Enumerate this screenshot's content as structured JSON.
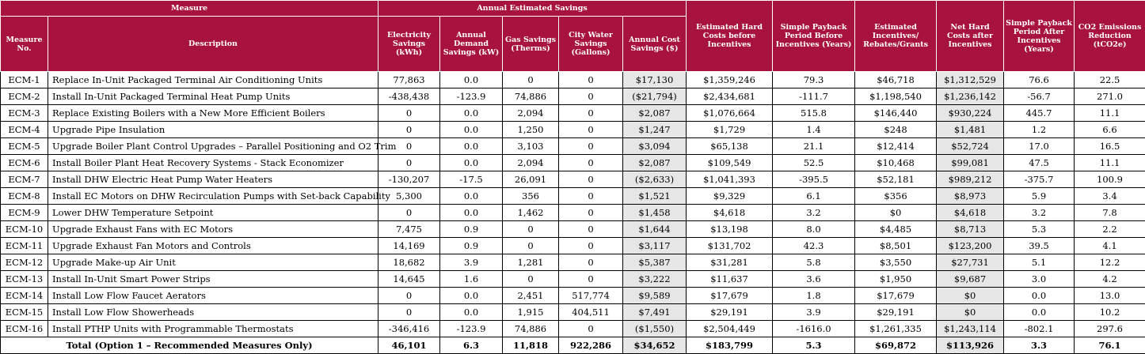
{
  "headers": {
    "measure": "Measure",
    "annual_savings": "Annual Estimated Savings",
    "no": "Measure No.",
    "description": "Description",
    "electricity": "Electricity Savings (kWh)",
    "demand": "Annual Demand Savings (kW)",
    "gas": "Gas Savings (Therms)",
    "water": "City Water Savings (Gallons)",
    "cost": "Annual Cost Savings ($)",
    "hard_costs": "Estimated Hard Costs before Incentives",
    "payback_before": "Simple Payback Period Before Incentives (Years)",
    "incentives": "Estimated Incentives/ Rebates/Grants",
    "net_costs": "Net Hard Costs after Incentives",
    "payback_after": "Simple Payback Period After Incentives (Years)",
    "co2": "CO2 Emissions Reduction (tCO2e)"
  },
  "rows": [
    {
      "no": "ECM-1",
      "desc": "Replace In-Unit Packaged Terminal Air Conditioning Units",
      "kwh": "77,863",
      "kw": "0.0",
      "therms": "0",
      "gallons": "0",
      "cost": "$17,130",
      "hard": "$1,359,246",
      "pb1": "79.3",
      "inc": "$46,718",
      "net": "$1,312,529",
      "pb2": "76.6",
      "co2": "22.5"
    },
    {
      "no": "ECM-2",
      "desc": "Install In-Unit Packaged Terminal Heat Pump Units",
      "kwh": "-438,438",
      "kw": "-123.9",
      "therms": "74,886",
      "gallons": "0",
      "cost": "($21,794)",
      "hard": "$2,434,681",
      "pb1": "-111.7",
      "inc": "$1,198,540",
      "net": "$1,236,142",
      "pb2": "-56.7",
      "co2": "271.0"
    },
    {
      "no": "ECM-3",
      "desc": "Replace Existing Boilers with a New More Efficient Boilers",
      "kwh": "0",
      "kw": "0.0",
      "therms": "2,094",
      "gallons": "0",
      "cost": "$2,087",
      "hard": "$1,076,664",
      "pb1": "515.8",
      "inc": "$146,440",
      "net": "$930,224",
      "pb2": "445.7",
      "co2": "11.1"
    },
    {
      "no": "ECM-4",
      "desc": "Upgrade Pipe Insulation",
      "kwh": "0",
      "kw": "0.0",
      "therms": "1,250",
      "gallons": "0",
      "cost": "$1,247",
      "hard": "$1,729",
      "pb1": "1.4",
      "inc": "$248",
      "net": "$1,481",
      "pb2": "1.2",
      "co2": "6.6"
    },
    {
      "no": "ECM-5",
      "desc": "Upgrade Boiler Plant Control Upgrades – Parallel Positioning and O2 Trim",
      "kwh": "0",
      "kw": "0.0",
      "therms": "3,103",
      "gallons": "0",
      "cost": "$3,094",
      "hard": "$65,138",
      "pb1": "21.1",
      "inc": "$12,414",
      "net": "$52,724",
      "pb2": "17.0",
      "co2": "16.5"
    },
    {
      "no": "ECM-6",
      "desc": "Install Boiler Plant Heat Recovery Systems - Stack Economizer",
      "kwh": "0",
      "kw": "0.0",
      "therms": "2,094",
      "gallons": "0",
      "cost": "$2,087",
      "hard": "$109,549",
      "pb1": "52.5",
      "inc": "$10,468",
      "net": "$99,081",
      "pb2": "47.5",
      "co2": "11.1"
    },
    {
      "no": "ECM-7",
      "desc": "Install DHW Electric Heat Pump Water Heaters",
      "kwh": "-130,207",
      "kw": "-17.5",
      "therms": "26,091",
      "gallons": "0",
      "cost": "($2,633)",
      "hard": "$1,041,393",
      "pb1": "-395.5",
      "inc": "$52,181",
      "net": "$989,212",
      "pb2": "-375.7",
      "co2": "100.9"
    },
    {
      "no": "ECM-8",
      "desc": "Install EC Motors on DHW Recirculation Pumps with Set-back Capability",
      "kwh": "5,300",
      "kw": "0.0",
      "therms": "356",
      "gallons": "0",
      "cost": "$1,521",
      "hard": "$9,329",
      "pb1": "6.1",
      "inc": "$356",
      "net": "$8,973",
      "pb2": "5.9",
      "co2": "3.4"
    },
    {
      "no": "ECM-9",
      "desc": "Lower DHW Temperature Setpoint",
      "kwh": "0",
      "kw": "0.0",
      "therms": "1,462",
      "gallons": "0",
      "cost": "$1,458",
      "hard": "$4,618",
      "pb1": "3.2",
      "inc": "$0",
      "net": "$4,618",
      "pb2": "3.2",
      "co2": "7.8"
    },
    {
      "no": "ECM-10",
      "desc": "Upgrade Exhaust Fans with EC Motors",
      "kwh": "7,475",
      "kw": "0.9",
      "therms": "0",
      "gallons": "0",
      "cost": "$1,644",
      "hard": "$13,198",
      "pb1": "8.0",
      "inc": "$4,485",
      "net": "$8,713",
      "pb2": "5.3",
      "co2": "2.2"
    },
    {
      "no": "ECM-11",
      "desc": "Upgrade Exhaust Fan Motors and Controls",
      "kwh": "14,169",
      "kw": "0.9",
      "therms": "0",
      "gallons": "0",
      "cost": "$3,117",
      "hard": "$131,702",
      "pb1": "42.3",
      "inc": "$8,501",
      "net": "$123,200",
      "pb2": "39.5",
      "co2": "4.1"
    },
    {
      "no": "ECM-12",
      "desc": "Upgrade Make-up Air Unit",
      "kwh": "18,682",
      "kw": "3.9",
      "therms": "1,281",
      "gallons": "0",
      "cost": "$5,387",
      "hard": "$31,281",
      "pb1": "5.8",
      "inc": "$3,550",
      "net": "$27,731",
      "pb2": "5.1",
      "co2": "12.2"
    },
    {
      "no": "ECM-13",
      "desc": "Install In-Unit Smart Power Strips",
      "kwh": "14,645",
      "kw": "1.6",
      "therms": "0",
      "gallons": "0",
      "cost": "$3,222",
      "hard": "$11,637",
      "pb1": "3.6",
      "inc": "$1,950",
      "net": "$9,687",
      "pb2": "3.0",
      "co2": "4.2"
    },
    {
      "no": "ECM-14",
      "desc": "Install Low Flow Faucet Aerators",
      "kwh": "0",
      "kw": "0.0",
      "therms": "2,451",
      "gallons": "517,774",
      "cost": "$9,589",
      "hard": "$17,679",
      "pb1": "1.8",
      "inc": "$17,679",
      "net": "$0",
      "pb2": "0.0",
      "co2": "13.0"
    },
    {
      "no": "ECM-15",
      "desc": "Install Low Flow Showerheads",
      "kwh": "0",
      "kw": "0.0",
      "therms": "1,915",
      "gallons": "404,511",
      "cost": "$7,491",
      "hard": "$29,191",
      "pb1": "3.9",
      "inc": "$29,191",
      "net": "$0",
      "pb2": "0.0",
      "co2": "10.2"
    },
    {
      "no": "ECM-16",
      "desc": "Install PTHP Units with Programmable Thermostats",
      "kwh": "-346,416",
      "kw": "-123.9",
      "therms": "74,886",
      "gallons": "0",
      "cost": "($1,550)",
      "hard": "$2,504,449",
      "pb1": "-1616.0",
      "inc": "$1,261,335",
      "net": "$1,243,114",
      "pb2": "-802.1",
      "co2": "297.6"
    }
  ],
  "total": {
    "label": "Total (Option 1 – Recommended Measures Only)",
    "kwh": "46,101",
    "kw": "6.3",
    "therms": "11,818",
    "gallons": "922,286",
    "cost": "$34,652",
    "hard": "$183,799",
    "pb1": "5.3",
    "inc": "$69,872",
    "net": "$113,926",
    "pb2": "3.3",
    "co2": "76.1"
  }
}
